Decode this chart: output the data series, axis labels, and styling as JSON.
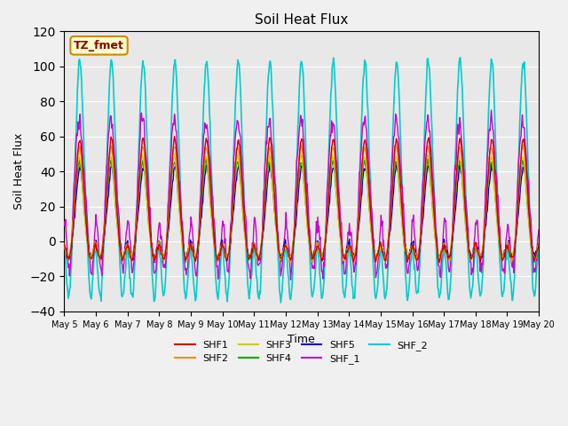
{
  "title": "Soil Heat Flux",
  "xlabel": "Time",
  "ylabel": "Soil Heat Flux",
  "ylim": [
    -40,
    120
  ],
  "background_color": "#f0f0f0",
  "plot_bg_color": "#e8e8e8",
  "annotation_text": "TZ_fmet",
  "annotation_bg": "#ffffcc",
  "annotation_border": "#cc8800",
  "series_colors": {
    "SHF1": "#cc0000",
    "SHF2": "#ff8800",
    "SHF3": "#cccc00",
    "SHF4": "#00aa00",
    "SHF5": "#0000cc",
    "SHF_1": "#cc00cc",
    "SHF_2": "#00cccc"
  },
  "x_tick_labels": [
    "May 5",
    "May 6",
    "May 7",
    "May 8",
    "May 9",
    "May 10",
    "May 11",
    "May 12",
    "May 13",
    "May 14",
    "May 15",
    "May 16",
    "May 17",
    "May 18",
    "May 19",
    "May 20"
  ],
  "n_days": 15,
  "points_per_day": 48
}
